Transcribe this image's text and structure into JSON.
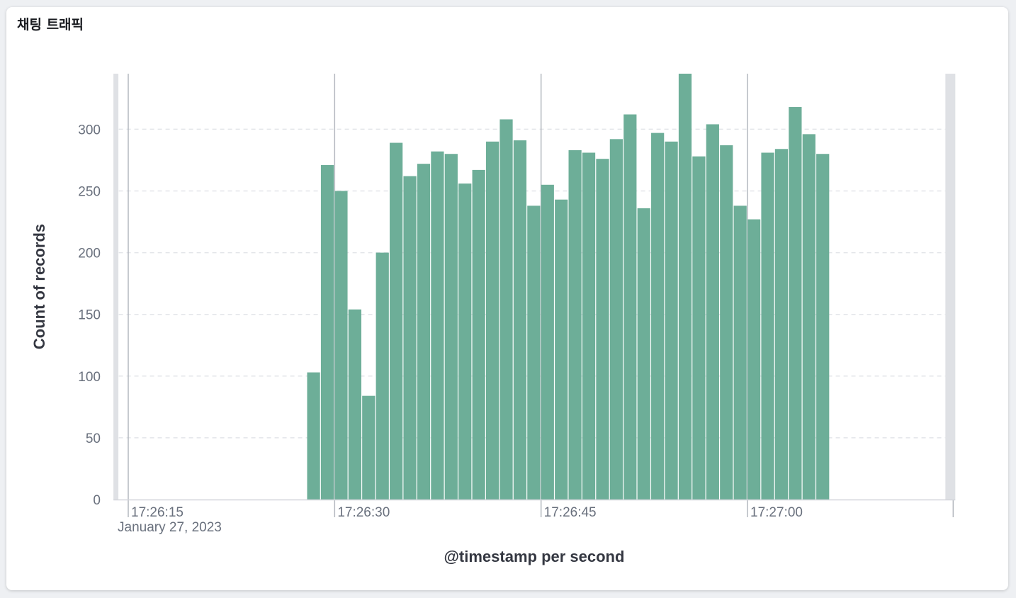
{
  "panel": {
    "title": "채팅 트래픽"
  },
  "chart_data": {
    "type": "bar",
    "xlabel": "@timestamp per second",
    "ylabel": "Count of records",
    "ylim": [
      0,
      345
    ],
    "yticks": [
      0,
      50,
      100,
      150,
      200,
      250,
      300
    ],
    "xlim": [
      "17:26:14",
      "17:27:15"
    ],
    "xticks": [
      {
        "time": "17:26:15",
        "label": "17:26:15",
        "sublabel": "January 27, 2023"
      },
      {
        "time": "17:26:30",
        "label": "17:26:30"
      },
      {
        "time": "17:26:45",
        "label": "17:26:45"
      },
      {
        "time": "17:27:00",
        "label": "17:27:00"
      }
    ],
    "date": "January 27, 2023",
    "grid": "horizontal-dashed",
    "bar_color": "#6dae98",
    "x": [
      "17:26:28",
      "17:26:29",
      "17:26:30",
      "17:26:31",
      "17:26:32",
      "17:26:33",
      "17:26:34",
      "17:26:35",
      "17:26:36",
      "17:26:37",
      "17:26:38",
      "17:26:39",
      "17:26:40",
      "17:26:41",
      "17:26:42",
      "17:26:43",
      "17:26:44",
      "17:26:45",
      "17:26:46",
      "17:26:47",
      "17:26:48",
      "17:26:49",
      "17:26:50",
      "17:26:51",
      "17:26:52",
      "17:26:53",
      "17:26:54",
      "17:26:55",
      "17:26:56",
      "17:26:57",
      "17:26:58",
      "17:26:59",
      "17:27:00",
      "17:27:01",
      "17:27:02",
      "17:27:03",
      "17:27:04",
      "17:27:05"
    ],
    "values": [
      103,
      271,
      250,
      154,
      84,
      200,
      289,
      262,
      272,
      282,
      280,
      256,
      267,
      290,
      308,
      291,
      238,
      255,
      243,
      283,
      281,
      276,
      292,
      312,
      236,
      297,
      290,
      345,
      278,
      304,
      287,
      238,
      227,
      281,
      284,
      318,
      296,
      280
    ]
  }
}
